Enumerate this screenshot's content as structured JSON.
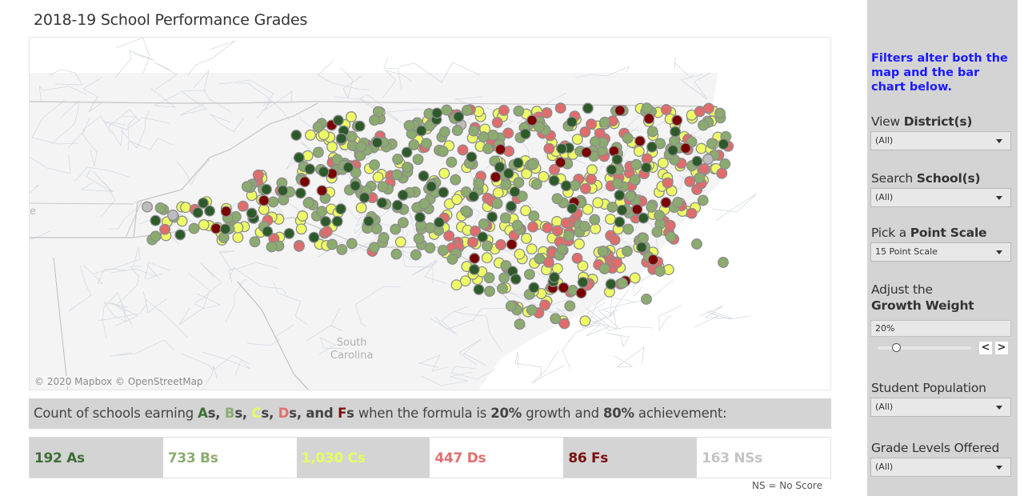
{
  "page": {
    "title": "2018-19 School Performance Grades"
  },
  "map": {
    "attribution": "© 2020 Mapbox  © OpenStreetMap",
    "labels": {
      "south_carolina_line1": "South",
      "south_carolina_line2": "Carolina",
      "tennessee_fragment": "e"
    },
    "colors": {
      "A": "#2e5a2a",
      "B": "#8cab6f",
      "C": "#eeff66",
      "D": "#e06c6c",
      "F": "#7a0000",
      "NS": "#bdbdbd",
      "stroke": "#8c8c8c",
      "land": "#f4f4f5",
      "water": "#ffffff",
      "boundary": "#c9ced6"
    },
    "legend_colors": {
      "A": "#3f6e35",
      "B": "#8dab72",
      "C": "#e6ff5c",
      "D": "#e07070",
      "F": "#7a1010",
      "NS": "#c4c4c4"
    }
  },
  "summary": {
    "prefix": "Count of schools earning ",
    "grades_text": [
      {
        "letter": "A",
        "suffix": "s, ",
        "grade": "A"
      },
      {
        "letter": "B",
        "suffix": "s, ",
        "grade": "B"
      },
      {
        "letter": "C",
        "suffix": "s, ",
        "grade": "C"
      },
      {
        "letter": "D",
        "suffix": "s, and ",
        "grade": "D"
      },
      {
        "letter": "F",
        "suffix": "s",
        "grade": "F"
      }
    ],
    "middle": " when the formula is ",
    "growth_pct": "20%",
    "growth_word": " growth and ",
    "achievement_pct": "80%",
    "achievement_word": " achievement:",
    "counts": [
      {
        "grade": "A",
        "label": "192 As",
        "color": "#3f6e35",
        "bg": "gray"
      },
      {
        "grade": "B",
        "label": "733 Bs",
        "color": "#8dab72",
        "bg": "white"
      },
      {
        "grade": "C",
        "label": "1,030 Cs",
        "color": "#e6ff5c",
        "bg": "gray"
      },
      {
        "grade": "D",
        "label": "447 Ds",
        "color": "#e07070",
        "bg": "white"
      },
      {
        "grade": "F",
        "label": "86 Fs",
        "color": "#7a1010",
        "bg": "gray"
      },
      {
        "grade": "NS",
        "label": "163 NSs",
        "color": "#c4c4c4",
        "bg": "white"
      }
    ],
    "footnote": "NS = No Score"
  },
  "sidebar": {
    "note": "Filters alter both the map and the bar chart below.",
    "district": {
      "label_plain": "View ",
      "label_bold": "District(s)",
      "value": "(All)"
    },
    "school": {
      "label_plain": "Search ",
      "label_bold": "School(s)",
      "value": "(All)"
    },
    "point_scale": {
      "label_plain": "Pick a ",
      "label_bold": "Point Scale",
      "value": "15 Point Scale"
    },
    "growth_weight": {
      "label_line1": "Adjust the",
      "label_bold": "Growth Weight",
      "value": "20%",
      "slider_percent": 20,
      "prev": "<",
      "next": ">"
    },
    "population": {
      "label": "Student Population",
      "value": "(All)"
    },
    "grade_levels": {
      "label": "Grade Levels Offered",
      "value": "(All)"
    }
  }
}
